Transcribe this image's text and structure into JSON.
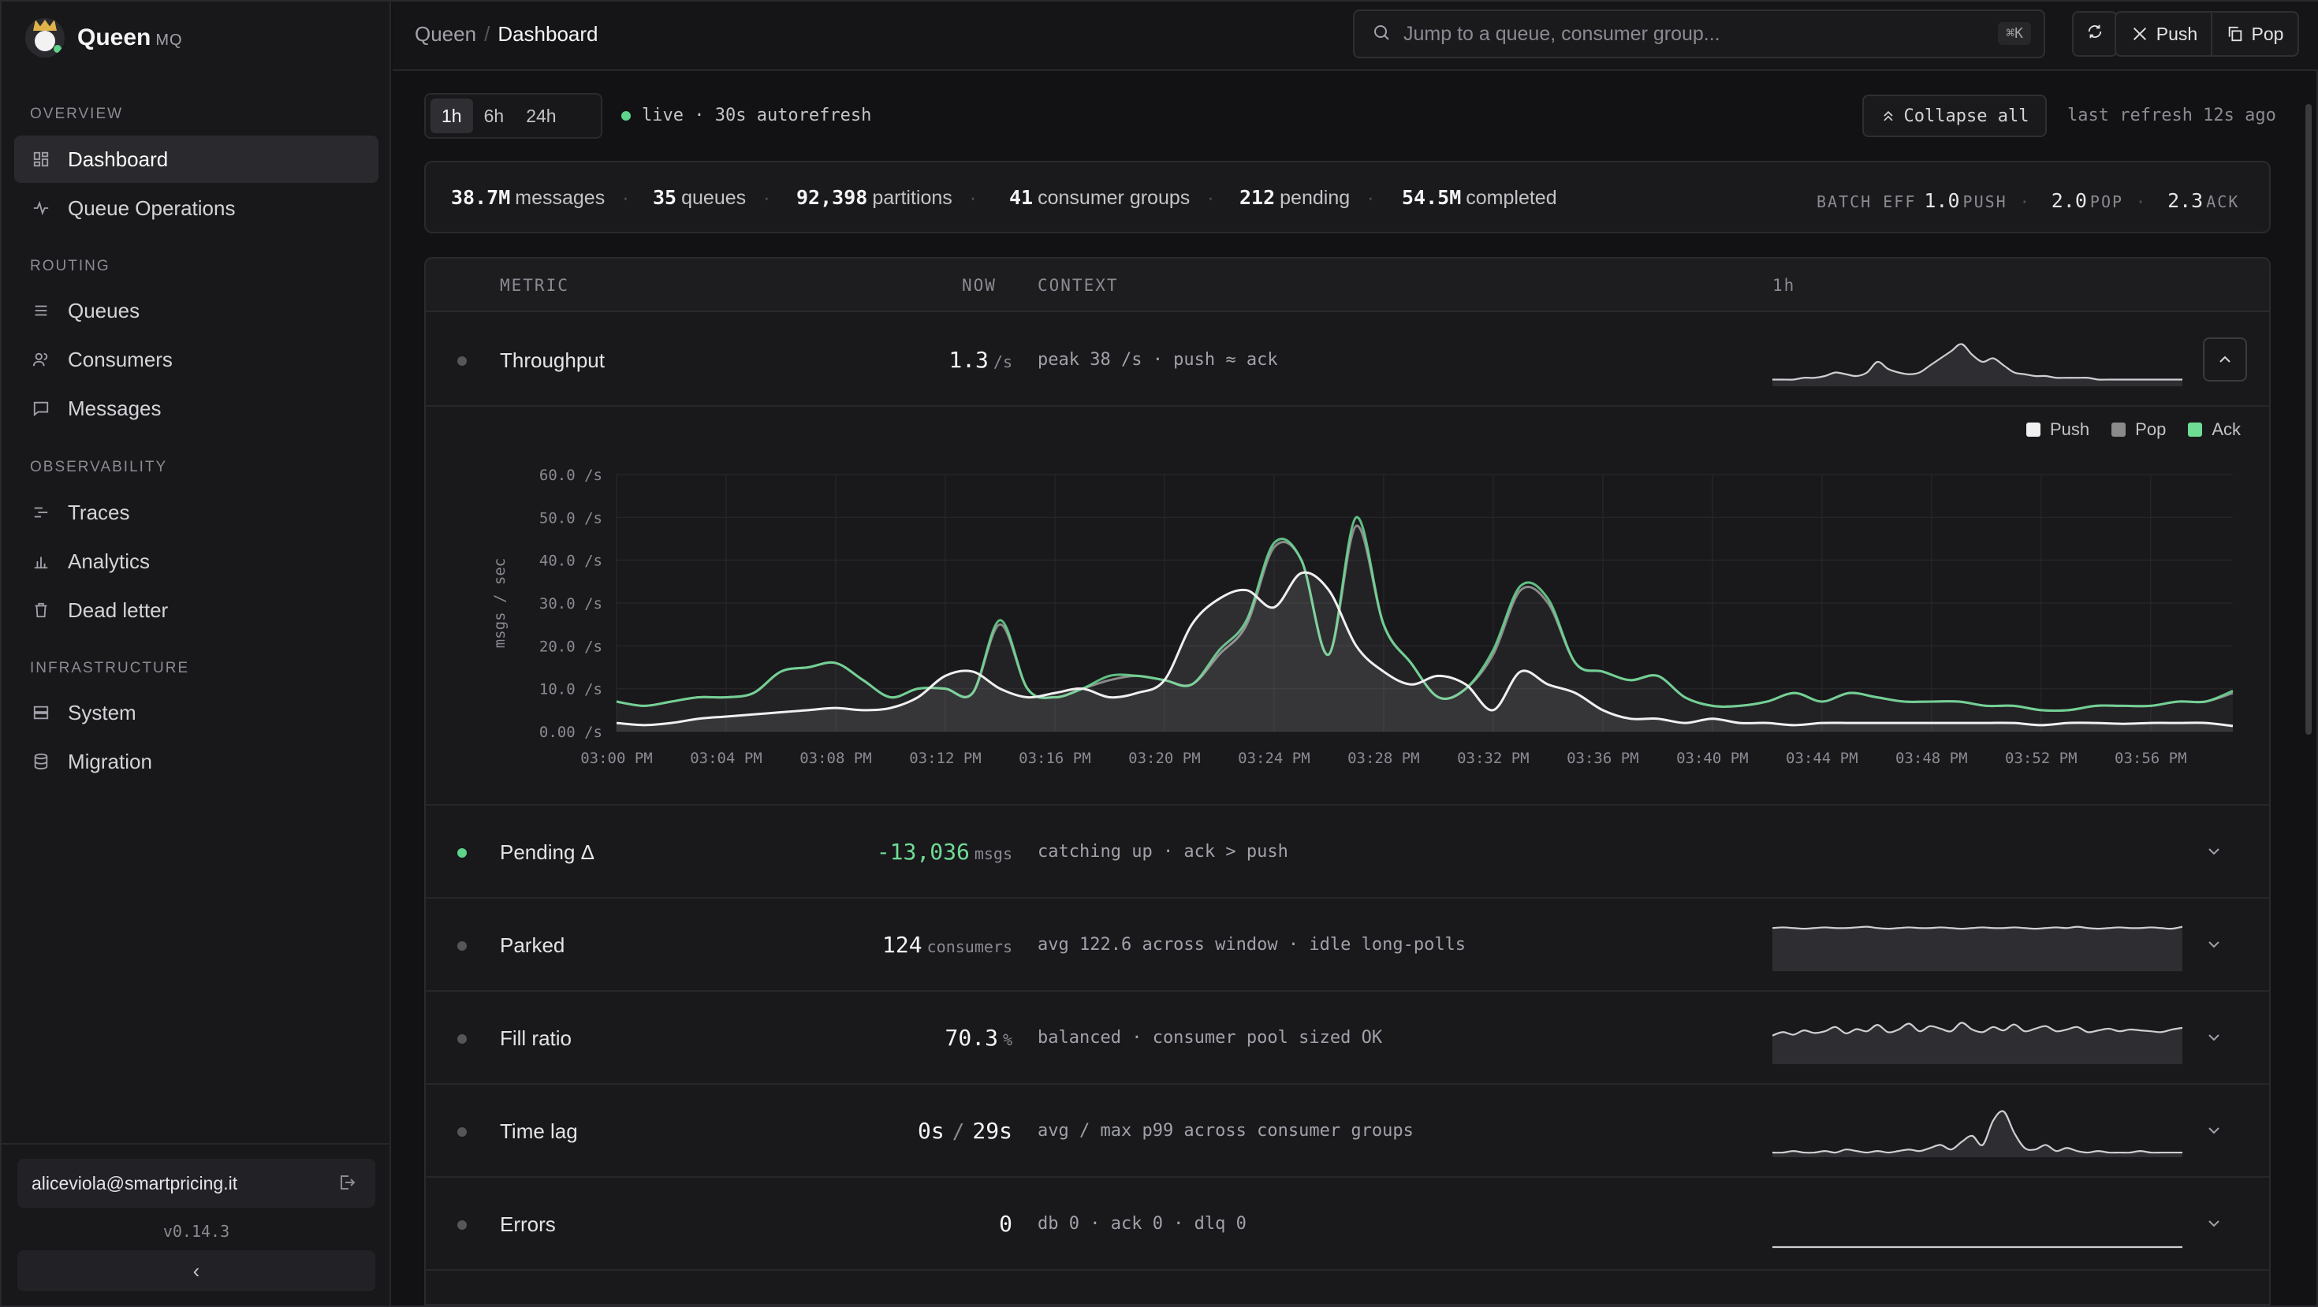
{
  "brand": {
    "name": "Queen",
    "suffix": "MQ"
  },
  "sidebar": {
    "sections": [
      {
        "title": "OVERVIEW",
        "items": [
          {
            "label": "Dashboard",
            "icon": "dashboard-icon",
            "active": true
          },
          {
            "label": "Queue Operations",
            "icon": "activity-icon"
          }
        ]
      },
      {
        "title": "ROUTING",
        "items": [
          {
            "label": "Queues",
            "icon": "list-icon"
          },
          {
            "label": "Consumers",
            "icon": "users-icon"
          },
          {
            "label": "Messages",
            "icon": "message-icon"
          }
        ]
      },
      {
        "title": "OBSERVABILITY",
        "items": [
          {
            "label": "Traces",
            "icon": "trace-icon"
          },
          {
            "label": "Analytics",
            "icon": "bar-chart-icon"
          },
          {
            "label": "Dead letter",
            "icon": "trash-icon"
          }
        ]
      },
      {
        "title": "INFRASTRUCTURE",
        "items": [
          {
            "label": "System",
            "icon": "server-icon"
          },
          {
            "label": "Migration",
            "icon": "database-icon"
          }
        ]
      }
    ],
    "user_email": "aliceviola@smartpricing.it",
    "version": "v0.14.3"
  },
  "topbar": {
    "breadcrumb": [
      "Queen",
      "Dashboard"
    ],
    "search_placeholder": "Jump to a queue, consumer group...",
    "search_shortcut": "⌘K",
    "push_label": "Push",
    "pop_label": "Pop"
  },
  "controls": {
    "ranges": [
      "1h",
      "6h",
      "24h"
    ],
    "selected_range": "1h",
    "live_label": "live · 30s autorefresh",
    "collapse_all_label": "Collapse all",
    "last_refresh": "last refresh 12s ago"
  },
  "stats": {
    "messages": {
      "value": "38.7M",
      "label": "messages"
    },
    "queues": {
      "value": "35",
      "label": "queues"
    },
    "partitions": {
      "value": "92,398",
      "label": "partitions"
    },
    "consumer_groups": {
      "value": "41",
      "label": "consumer groups"
    },
    "pending": {
      "value": "212",
      "label": "pending"
    },
    "completed": {
      "value": "54.5M",
      "label": "completed"
    },
    "batch_eff_label": "BATCH EFF",
    "batch_push": {
      "value": "1.0",
      "label": "PUSH"
    },
    "batch_pop": {
      "value": "2.0",
      "label": "POP"
    },
    "batch_ack": {
      "value": "2.3",
      "label": "ACK"
    }
  },
  "table": {
    "headers": {
      "metric": "METRIC",
      "now": "NOW",
      "context": "CONTEXT",
      "window": "1h"
    },
    "rows": [
      {
        "label": "Throughput",
        "value": "1.3",
        "unit": "/s",
        "context": "peak 38 /s · push ≈ ack"
      },
      {
        "label": "Pending Δ",
        "value": "-13,036",
        "unit": "msgs",
        "context": "catching up · ack > push"
      },
      {
        "label": "Parked",
        "value": "124",
        "unit": "consumers",
        "context": "avg 122.6 across window · idle long-polls"
      },
      {
        "label": "Fill ratio",
        "value": "70.3",
        "unit": "%",
        "context": "balanced · consumer pool sized OK"
      },
      {
        "label": "Time lag",
        "value": "0s",
        "value2": "29s",
        "sep": "/",
        "context": "avg / max p99 across consumer groups"
      },
      {
        "label": "Errors",
        "value": "0",
        "unit": "",
        "context": "db 0 · ack 0 · dlq 0"
      }
    ]
  },
  "chart_data": {
    "type": "line",
    "ylabel": "msgs / sec",
    "y_ticks": [
      "0.00 /s",
      "10.0 /s",
      "20.0 /s",
      "30.0 /s",
      "40.0 /s",
      "50.0 /s",
      "60.0 /s"
    ],
    "ylim": [
      0,
      60
    ],
    "x_ticks": [
      "03:00 PM",
      "03:04 PM",
      "03:08 PM",
      "03:12 PM",
      "03:16 PM",
      "03:20 PM",
      "03:24 PM",
      "03:28 PM",
      "03:32 PM",
      "03:36 PM",
      "03:40 PM",
      "03:44 PM",
      "03:48 PM",
      "03:52 PM",
      "03:56 PM"
    ],
    "x_minutes": [
      0,
      1,
      2,
      3,
      4,
      5,
      6,
      7,
      8,
      9,
      10,
      11,
      12,
      13,
      14,
      15,
      16,
      17,
      18,
      19,
      20,
      21,
      22,
      23,
      24,
      25,
      26,
      27,
      28,
      29,
      30,
      31,
      32,
      33,
      34,
      35,
      36,
      37,
      38,
      39,
      40,
      41,
      42,
      43,
      44,
      45,
      46,
      47,
      48,
      49,
      50,
      51,
      52,
      53,
      54,
      55,
      56,
      57,
      58,
      59
    ],
    "legend": [
      "Push",
      "Pop",
      "Ack"
    ],
    "series": [
      {
        "name": "Push",
        "color": "#f0f0f0",
        "values": [
          2,
          1.5,
          2,
          3,
          3.5,
          4,
          4.5,
          5,
          5.5,
          5,
          5.5,
          8,
          13,
          14,
          10,
          8,
          9,
          10,
          8,
          9,
          12,
          25,
          31,
          33,
          29,
          37,
          33,
          20,
          14,
          11,
          13,
          11,
          5,
          14,
          11,
          9,
          5,
          3,
          3,
          2,
          3,
          2,
          2,
          1.5,
          2,
          2,
          2,
          2,
          2,
          2,
          2,
          2,
          1.5,
          2,
          2,
          1.8,
          2,
          2,
          2,
          1.3
        ]
      },
      {
        "name": "Pop",
        "color": "#8a8a8a",
        "values": [
          7,
          6,
          7,
          8,
          8,
          9,
          14,
          15,
          16,
          12,
          8,
          10,
          10,
          9,
          25,
          10,
          8,
          10,
          12,
          13,
          12,
          11,
          18,
          25,
          43,
          40,
          18,
          48,
          25,
          16,
          8,
          10,
          18,
          33,
          30,
          16,
          14,
          12,
          13,
          8,
          6,
          6,
          7,
          9,
          7,
          9,
          8,
          7,
          7,
          7,
          6,
          6,
          5,
          5,
          6,
          6,
          6,
          7,
          7,
          9
        ]
      },
      {
        "name": "Ack",
        "color": "#6fdc95",
        "values": [
          7,
          6,
          7,
          8,
          8,
          9,
          14,
          15,
          16,
          12,
          8,
          10,
          10,
          9,
          26,
          10,
          8,
          10,
          13,
          13,
          12,
          11,
          19,
          26,
          44,
          40,
          18,
          50,
          25,
          16,
          8,
          10,
          19,
          34,
          31,
          16,
          14,
          12,
          13,
          8,
          6,
          6,
          7,
          9,
          7,
          9,
          8,
          7,
          7,
          7,
          6,
          6,
          5,
          5,
          6,
          6,
          6,
          7,
          7,
          9.5
        ]
      }
    ]
  },
  "sparks": {
    "throughput": [
      2,
      2,
      2,
      3,
      3,
      4,
      6,
      5,
      4,
      6,
      12,
      8,
      6,
      5,
      6,
      10,
      14,
      18,
      22,
      16,
      12,
      14,
      10,
      6,
      5,
      4,
      4,
      3,
      3,
      3,
      3,
      2,
      2,
      2,
      2,
      2,
      2,
      2,
      2,
      2
    ],
    "parked": [
      122,
      123,
      122,
      121,
      122,
      123,
      122,
      122,
      123,
      124,
      122,
      121,
      122,
      123,
      122,
      122,
      123,
      122,
      121,
      122,
      123,
      122,
      122,
      123,
      122,
      121,
      122,
      123,
      122,
      124,
      122,
      121,
      122,
      123,
      122,
      122,
      123,
      122,
      121,
      124
    ],
    "fill": [
      60,
      68,
      62,
      72,
      66,
      70,
      80,
      65,
      75,
      70,
      85,
      68,
      74,
      88,
      70,
      82,
      76,
      70,
      90,
      74,
      68,
      80,
      72,
      86,
      70,
      76,
      82,
      70,
      74,
      80,
      68,
      72,
      76,
      70,
      74,
      72,
      70,
      68,
      74,
      78
    ],
    "lag": [
      1,
      1,
      2,
      1,
      1,
      2,
      1,
      3,
      2,
      1,
      2,
      1,
      2,
      3,
      2,
      4,
      6,
      3,
      8,
      12,
      6,
      22,
      28,
      14,
      4,
      3,
      6,
      2,
      4,
      2,
      1,
      2,
      1,
      1,
      1,
      2,
      1,
      1,
      1,
      1
    ],
    "errors": [
      0,
      0,
      0,
      0,
      0,
      0,
      0,
      0,
      0,
      0,
      0,
      0,
      0,
      0,
      0,
      0,
      0,
      0,
      0,
      0,
      0,
      0,
      0,
      0,
      0,
      0,
      0,
      0,
      0,
      0,
      0,
      0,
      0,
      0,
      0,
      0,
      0,
      0,
      0,
      0
    ]
  }
}
